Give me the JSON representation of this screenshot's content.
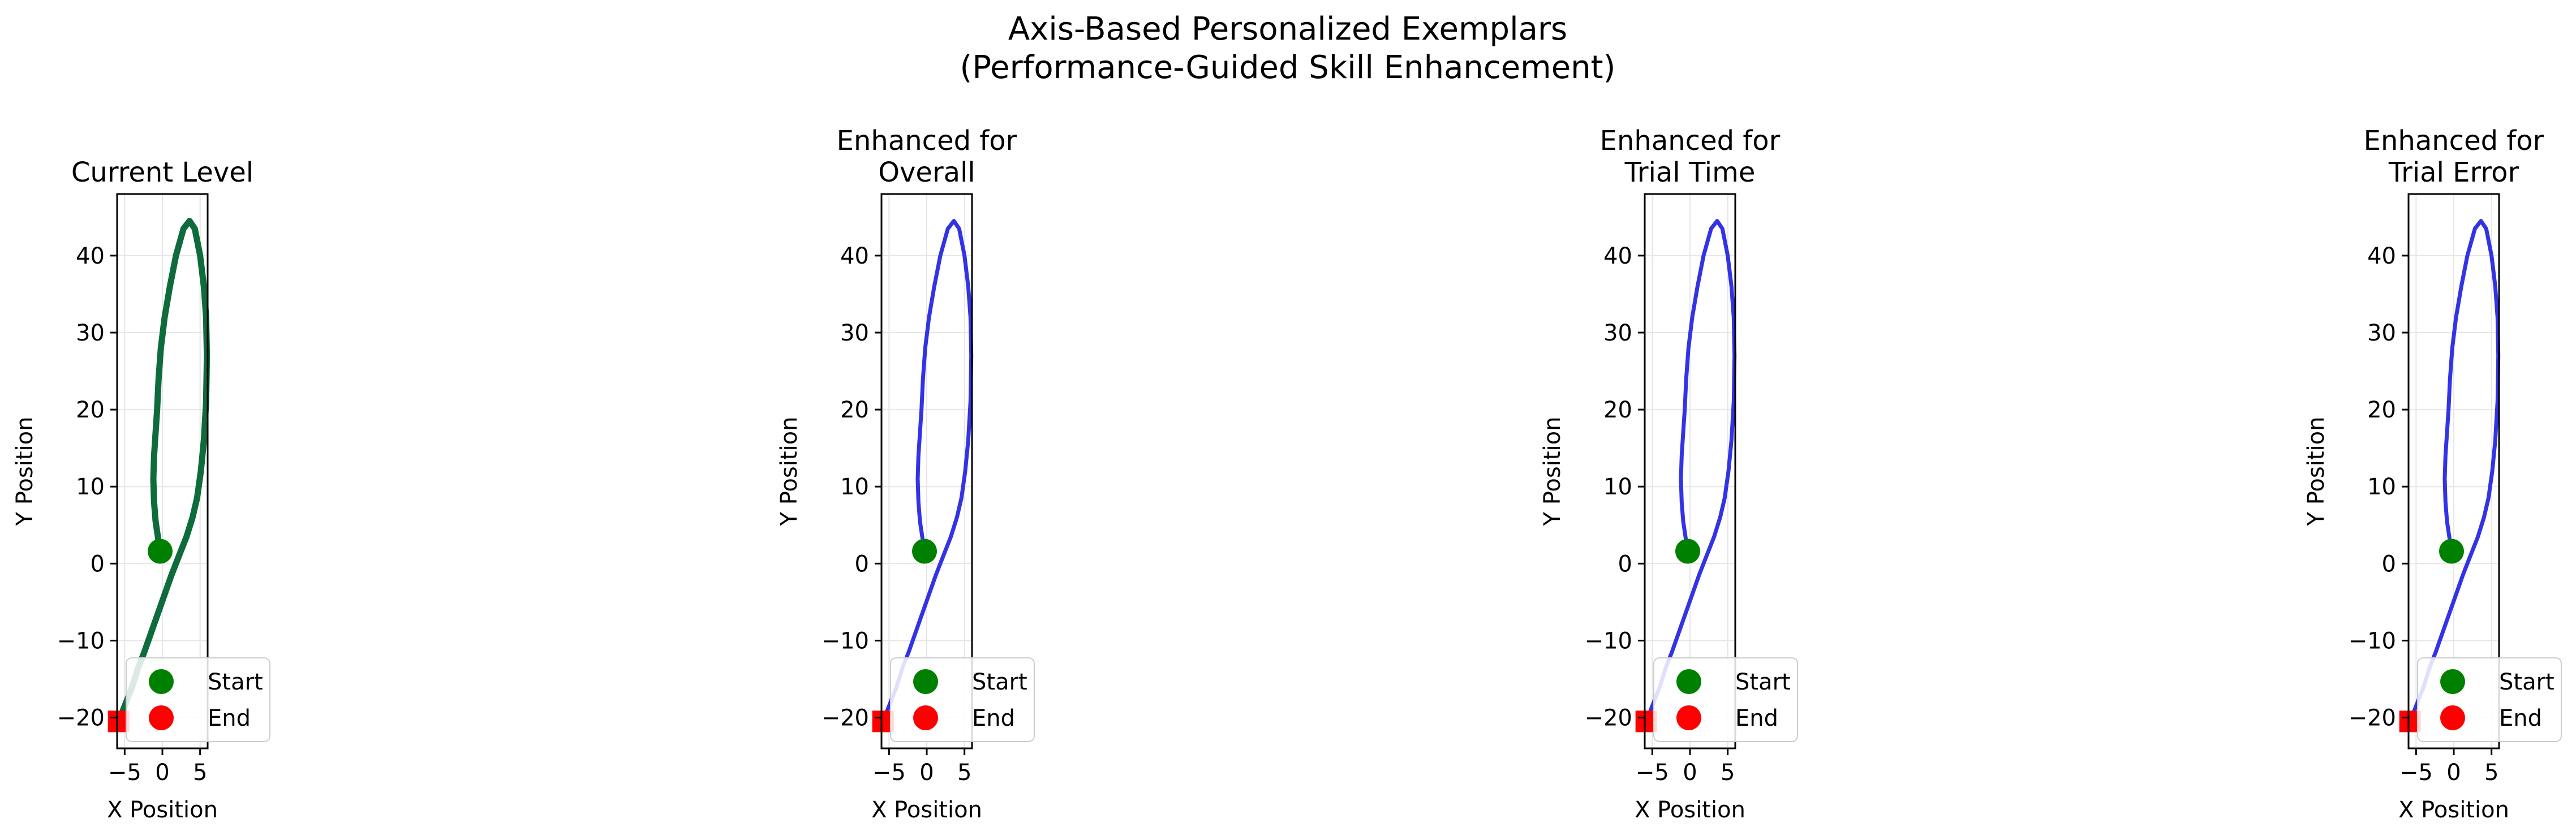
{
  "figure": {
    "title_line1": "Axis-Based Personalized Exemplars",
    "title_line2": "(Performance-Guided Skill Enhancement)"
  },
  "colors": {
    "current_path": "#0e6b3c",
    "enhanced_path": "#3333e6",
    "start_marker": "#008000",
    "end_marker": "#ff0000",
    "grid": "#e6e6e6"
  },
  "chart_data": [
    {
      "type": "line",
      "title_lines": [
        "Current Level"
      ],
      "xlabel": "X Position",
      "ylabel": "Y Position",
      "xlim": [
        -6,
        6
      ],
      "ylim": [
        -24,
        48
      ],
      "xticks": [
        -5,
        0,
        5
      ],
      "yticks": [
        -20,
        -10,
        0,
        10,
        20,
        30,
        40
      ],
      "grid": true,
      "legend": {
        "position": "lower-right",
        "entries": [
          "Start",
          "End"
        ]
      },
      "series": [
        {
          "color": "current",
          "x": [
            -0.3,
            -0.6,
            -0.9,
            -1.1,
            -1.2,
            -1.1,
            -0.9,
            -0.7,
            -0.5,
            -0.2,
            0.3,
            1.0,
            1.8,
            2.8,
            3.6,
            4.3,
            5.0,
            5.5,
            5.8,
            5.9,
            5.8,
            5.5,
            5.1,
            4.6,
            4.0,
            3.2,
            2.2,
            1.2,
            0.3,
            -0.6,
            -1.5,
            -2.4,
            -3.2,
            -4.0,
            -4.8,
            -5.4,
            -5.8
          ],
          "y": [
            1.6,
            3.5,
            5.5,
            8.0,
            11.0,
            14.0,
            17.0,
            20.0,
            24.0,
            28.0,
            32.0,
            36.0,
            40.0,
            43.5,
            44.5,
            43.5,
            40.0,
            36.0,
            32.0,
            27.0,
            21.0,
            16.0,
            12.0,
            8.5,
            6.0,
            3.5,
            1.0,
            -1.5,
            -4.0,
            -6.5,
            -9.0,
            -11.5,
            -13.5,
            -16.0,
            -18.0,
            -19.5,
            -20.5
          ]
        }
      ],
      "start": {
        "x": -0.3,
        "y": 1.6
      },
      "end": {
        "x": -5.8,
        "y": -20.5
      }
    },
    {
      "type": "line",
      "title_lines": [
        "Enhanced for",
        "Overall"
      ],
      "xlabel": "X Position",
      "ylabel": "Y Position",
      "xlim": [
        -6,
        6
      ],
      "ylim": [
        -24,
        48
      ],
      "xticks": [
        -5,
        0,
        5
      ],
      "yticks": [
        -20,
        -10,
        0,
        10,
        20,
        30,
        40
      ],
      "grid": true,
      "legend": {
        "position": "lower-right",
        "entries": [
          "Start",
          "End"
        ]
      },
      "series": [
        {
          "color": "enhanced",
          "x": [
            -0.3,
            -0.6,
            -0.9,
            -1.1,
            -1.2,
            -1.1,
            -0.9,
            -0.7,
            -0.5,
            -0.2,
            0.3,
            1.0,
            1.8,
            2.8,
            3.6,
            4.3,
            5.0,
            5.5,
            5.8,
            5.9,
            5.8,
            5.5,
            5.1,
            4.6,
            4.0,
            3.2,
            2.2,
            1.2,
            0.3,
            -0.6,
            -1.5,
            -2.4,
            -3.2,
            -4.0,
            -4.8,
            -5.4,
            -5.8
          ],
          "y": [
            1.6,
            3.5,
            5.5,
            8.0,
            11.0,
            14.0,
            17.0,
            20.0,
            24.0,
            28.0,
            32.0,
            36.0,
            40.0,
            43.5,
            44.5,
            43.5,
            40.0,
            36.0,
            32.0,
            27.0,
            21.0,
            16.0,
            12.0,
            8.5,
            6.0,
            3.5,
            1.0,
            -1.5,
            -4.0,
            -6.5,
            -9.0,
            -11.5,
            -13.5,
            -16.0,
            -18.0,
            -19.5,
            -20.5
          ]
        }
      ],
      "start": {
        "x": -0.3,
        "y": 1.6
      },
      "end": {
        "x": -5.8,
        "y": -20.5
      }
    },
    {
      "type": "line",
      "title_lines": [
        "Enhanced for",
        "Trial Time"
      ],
      "xlabel": "X Position",
      "ylabel": "Y Position",
      "xlim": [
        -6,
        6
      ],
      "ylim": [
        -24,
        48
      ],
      "xticks": [
        -5,
        0,
        5
      ],
      "yticks": [
        -20,
        -10,
        0,
        10,
        20,
        30,
        40
      ],
      "grid": true,
      "legend": {
        "position": "lower-right",
        "entries": [
          "Start",
          "End"
        ]
      },
      "series": [
        {
          "color": "enhanced",
          "x": [
            -0.3,
            -0.6,
            -0.9,
            -1.1,
            -1.2,
            -1.1,
            -0.9,
            -0.7,
            -0.5,
            -0.2,
            0.3,
            1.0,
            1.8,
            2.8,
            3.6,
            4.3,
            5.0,
            5.5,
            5.8,
            5.9,
            5.8,
            5.5,
            5.1,
            4.6,
            4.0,
            3.2,
            2.2,
            1.2,
            0.3,
            -0.6,
            -1.5,
            -2.4,
            -3.2,
            -4.0,
            -4.8,
            -5.4,
            -5.8
          ],
          "y": [
            1.6,
            3.5,
            5.5,
            8.0,
            11.0,
            14.0,
            17.0,
            20.0,
            24.0,
            28.0,
            32.0,
            36.0,
            40.0,
            43.5,
            44.5,
            43.5,
            40.0,
            36.0,
            32.0,
            27.0,
            21.0,
            16.0,
            12.0,
            8.5,
            6.0,
            3.5,
            1.0,
            -1.5,
            -4.0,
            -6.5,
            -9.0,
            -11.5,
            -13.5,
            -16.0,
            -18.0,
            -19.5,
            -20.5
          ]
        }
      ],
      "start": {
        "x": -0.3,
        "y": 1.6
      },
      "end": {
        "x": -5.8,
        "y": -20.5
      }
    },
    {
      "type": "line",
      "title_lines": [
        "Enhanced for",
        "Trial Error"
      ],
      "xlabel": "X Position",
      "ylabel": "Y Position",
      "xlim": [
        -6,
        6
      ],
      "ylim": [
        -24,
        48
      ],
      "xticks": [
        -5,
        0,
        5
      ],
      "yticks": [
        -20,
        -10,
        0,
        10,
        20,
        30,
        40
      ],
      "grid": true,
      "legend": {
        "position": "lower-right",
        "entries": [
          "Start",
          "End"
        ]
      },
      "series": [
        {
          "color": "enhanced",
          "x": [
            -0.3,
            -0.6,
            -0.9,
            -1.1,
            -1.2,
            -1.1,
            -0.9,
            -0.7,
            -0.5,
            -0.2,
            0.3,
            1.0,
            1.8,
            2.8,
            3.6,
            4.3,
            5.0,
            5.5,
            5.8,
            5.9,
            5.8,
            5.5,
            5.1,
            4.6,
            4.0,
            3.2,
            2.2,
            1.2,
            0.3,
            -0.6,
            -1.5,
            -2.4,
            -3.2,
            -4.0,
            -4.8,
            -5.4,
            -5.8
          ],
          "y": [
            1.6,
            3.5,
            5.5,
            8.0,
            11.0,
            14.0,
            17.0,
            20.0,
            24.0,
            28.0,
            32.0,
            36.0,
            40.0,
            43.5,
            44.5,
            43.5,
            40.0,
            36.0,
            32.0,
            27.0,
            21.0,
            16.0,
            12.0,
            8.5,
            6.0,
            3.5,
            1.0,
            -1.5,
            -4.0,
            -6.5,
            -9.0,
            -11.5,
            -13.5,
            -16.0,
            -18.0,
            -19.5,
            -20.5
          ]
        }
      ],
      "start": {
        "x": -0.3,
        "y": 1.6
      },
      "end": {
        "x": -5.8,
        "y": -20.5
      }
    }
  ]
}
